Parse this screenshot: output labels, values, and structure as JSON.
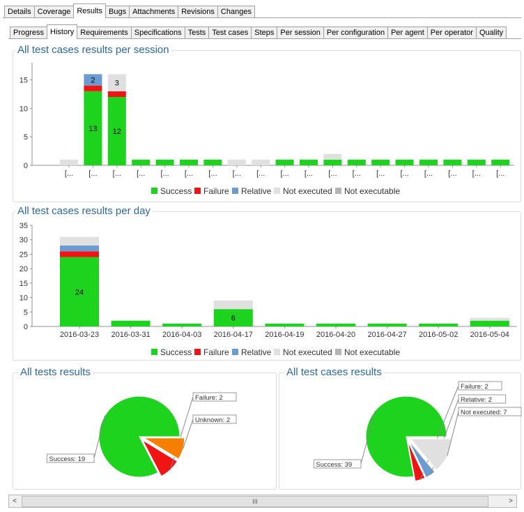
{
  "main_tabs": [
    "Details",
    "Coverage",
    "Results",
    "Bugs",
    "Attachments",
    "Revisions",
    "Changes"
  ],
  "main_active": "Results",
  "sub_tabs": [
    "Progress",
    "History",
    "Requirements",
    "Specifications",
    "Tests",
    "Test cases",
    "Steps",
    "Per session",
    "Per configuration",
    "Per agent",
    "Per operator",
    "Quality"
  ],
  "sub_active": "History",
  "colors": {
    "success": "#1ed31e",
    "failure": "#f01414",
    "relative": "#6b9bd0",
    "not_executed": "#e0e0e0",
    "not_executable": "#b4b4b4",
    "unknown": "#f77f00",
    "title": "#2d67a0"
  },
  "legend": [
    "Success",
    "Failure",
    "Relative",
    "Not executed",
    "Not executable"
  ],
  "chart_data": [
    {
      "type": "bar",
      "title": "All test cases results per session",
      "stacked": true,
      "categories": [
        "[...",
        "[...",
        "[...",
        "[...",
        "[...",
        "[...",
        "[...",
        "[...",
        "[...",
        "[...",
        "[...",
        "[...",
        "[...",
        "[...",
        "[...",
        "[...",
        "[...",
        "[...",
        "[..."
      ],
      "series": [
        {
          "name": "Success",
          "values": [
            0,
            13,
            12,
            1,
            1,
            1,
            1,
            0,
            0,
            1,
            1,
            1,
            1,
            1,
            1,
            1,
            1,
            1,
            1
          ]
        },
        {
          "name": "Failure",
          "values": [
            0,
            1,
            1,
            0,
            0,
            0,
            0,
            0,
            0,
            0,
            0,
            0,
            0,
            0,
            0,
            0,
            0,
            0,
            0
          ]
        },
        {
          "name": "Relative",
          "values": [
            0,
            2,
            0,
            0,
            0,
            0,
            0,
            0,
            0,
            0,
            0,
            0,
            0,
            0,
            0,
            0,
            0,
            0,
            0
          ]
        },
        {
          "name": "Not executed",
          "values": [
            1,
            0,
            3,
            0,
            0,
            0,
            0,
            1,
            1,
            0,
            0,
            1,
            0,
            0,
            0,
            0,
            0,
            0,
            0
          ]
        },
        {
          "name": "Not executable",
          "values": [
            0,
            0,
            0,
            0,
            0,
            0,
            0,
            0,
            0,
            0,
            0,
            0,
            0,
            0,
            0,
            0,
            0,
            0,
            0
          ]
        }
      ],
      "data_labels": [
        {
          "index": 1,
          "series": "Success",
          "text": "13"
        },
        {
          "index": 1,
          "series": "Relative",
          "text": "2"
        },
        {
          "index": 2,
          "series": "Success",
          "text": "12"
        },
        {
          "index": 2,
          "series": "Not executed",
          "text": "3"
        }
      ],
      "yticks": [
        0,
        5,
        10,
        15
      ],
      "ylim": [
        0,
        18
      ],
      "legend_position": "bottom"
    },
    {
      "type": "bar",
      "title": "All test cases results per day",
      "stacked": true,
      "categories": [
        "2016-03-23",
        "2016-03-31",
        "2016-04-03",
        "2016-04-17",
        "2016-04-19",
        "2016-04-20",
        "2016-04-27",
        "2016-05-02",
        "2016-05-04"
      ],
      "series": [
        {
          "name": "Success",
          "values": [
            24,
            2,
            1,
            6,
            1,
            1,
            1,
            1,
            2
          ]
        },
        {
          "name": "Failure",
          "values": [
            2,
            0,
            0,
            0,
            0,
            0,
            0,
            0,
            0
          ]
        },
        {
          "name": "Relative",
          "values": [
            2,
            0,
            0,
            0,
            0,
            0,
            0,
            0,
            0
          ]
        },
        {
          "name": "Not executed",
          "values": [
            3,
            0,
            0,
            3,
            0,
            0,
            0,
            0,
            1
          ]
        },
        {
          "name": "Not executable",
          "values": [
            0,
            0,
            0,
            0,
            0,
            0,
            0,
            0,
            0
          ]
        }
      ],
      "data_labels": [
        {
          "index": 0,
          "series": "Success",
          "text": "24"
        },
        {
          "index": 3,
          "series": "Success",
          "text": "6"
        }
      ],
      "yticks": [
        0,
        5,
        10,
        15,
        20,
        25,
        30,
        35
      ],
      "ylim": [
        0,
        35
      ],
      "legend_position": "bottom"
    },
    {
      "type": "pie",
      "title": "All tests results",
      "slices": [
        {
          "name": "Success",
          "value": 19,
          "label": "Success: 19",
          "color": "#1ed31e"
        },
        {
          "name": "Failure",
          "value": 2,
          "label": "Failure: 2",
          "color": "#f01414"
        },
        {
          "name": "Unknown",
          "value": 2,
          "label": "Unknown: 2",
          "color": "#f77f00"
        }
      ]
    },
    {
      "type": "pie",
      "title": "All test cases results",
      "slices": [
        {
          "name": "Success",
          "value": 39,
          "label": "Success: 39",
          "color": "#1ed31e"
        },
        {
          "name": "Failure",
          "value": 2,
          "label": "Failure: 2",
          "color": "#f01414"
        },
        {
          "name": "Relative",
          "value": 2,
          "label": "Relative: 2",
          "color": "#6b9bd0"
        },
        {
          "name": "Not executed",
          "value": 7,
          "label": "Not executed: 7",
          "color": "#e0e0e0"
        }
      ]
    }
  ],
  "scrollbar": {
    "left_arrow": "<",
    "right_arrow": ">",
    "thumb_grip": "III"
  }
}
